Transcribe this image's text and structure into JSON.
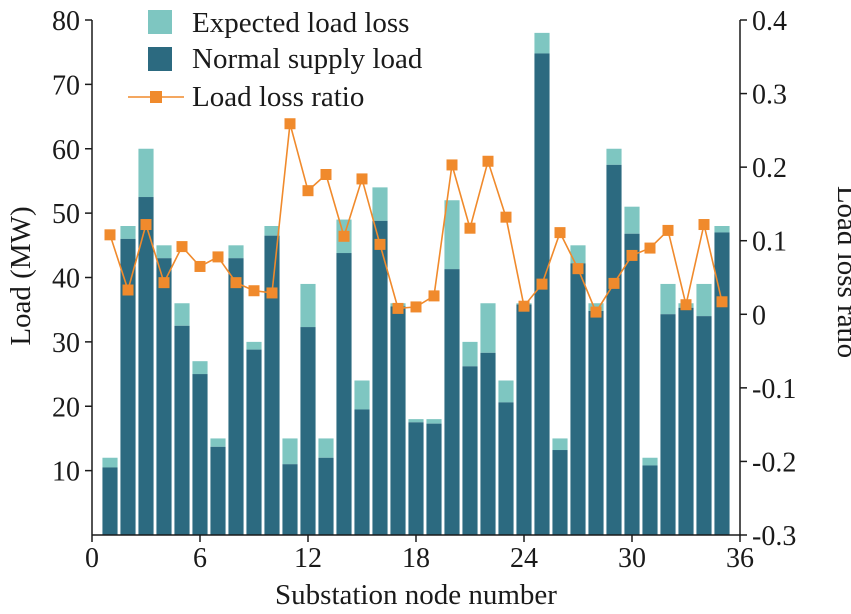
{
  "chart_data": {
    "type": "bar",
    "subtype": "stacked bar with secondary-axis line",
    "title": "",
    "xlabel": "Substation node number",
    "ylabel": "Load (MW)",
    "ylabel_right": "Load loss ratio",
    "x": [
      1,
      2,
      3,
      4,
      5,
      6,
      7,
      8,
      9,
      10,
      11,
      12,
      13,
      14,
      15,
      16,
      17,
      18,
      19,
      20,
      21,
      22,
      23,
      24,
      25,
      26,
      27,
      28,
      29,
      30,
      31,
      32,
      33,
      34,
      35
    ],
    "xlim": [
      0,
      36
    ],
    "xticks": [
      0,
      6,
      12,
      18,
      24,
      30,
      36
    ],
    "ylim": [
      0,
      80
    ],
    "yticks": [
      10,
      20,
      30,
      40,
      50,
      60,
      70,
      80
    ],
    "ylim_right": [
      -0.3,
      0.4
    ],
    "yticks_right": [
      -0.3,
      -0.2,
      -0.1,
      0,
      0.1,
      0.2,
      0.3,
      0.4
    ],
    "yticklabels_right": [
      "-0.3",
      "-0.2",
      "-0.1",
      "0",
      "0.1",
      "0.2",
      "0.3",
      "0.4"
    ],
    "grid": false,
    "legend_position": "top-left",
    "series": [
      {
        "name": "Normal supply load",
        "kind": "bar",
        "axis": "left",
        "color": "#2c6a80",
        "values": [
          10.5,
          46,
          52.5,
          43,
          32.5,
          25,
          13.7,
          43,
          28.8,
          46.5,
          11,
          32.3,
          12,
          43.8,
          19.5,
          48.8,
          35.5,
          17.5,
          17.3,
          41.3,
          26.2,
          28.3,
          20.6,
          35.8,
          74.8,
          13.2,
          42.2,
          34.8,
          57.5,
          46.8,
          10.8,
          34.3,
          35.3,
          34,
          47
        ]
      },
      {
        "name": "Expected load loss",
        "kind": "bar",
        "axis": "left",
        "color": "#7ec6c1",
        "stacked_on": "Normal supply load",
        "totals": [
          12,
          48,
          60,
          45,
          36,
          27,
          15,
          45,
          30,
          48,
          15,
          39,
          15,
          49,
          24,
          54,
          36,
          18,
          18,
          52,
          30,
          36,
          24,
          36,
          78,
          15,
          45,
          36,
          60,
          51,
          12,
          39,
          36,
          39,
          48
        ]
      },
      {
        "name": "Load loss ratio",
        "kind": "line",
        "axis": "right",
        "color": "#f08a2c",
        "values": [
          0.108,
          0.033,
          0.122,
          0.043,
          0.092,
          0.065,
          0.078,
          0.043,
          0.032,
          0.029,
          0.259,
          0.168,
          0.19,
          0.106,
          0.184,
          0.095,
          0.008,
          0.01,
          0.025,
          0.203,
          0.117,
          0.208,
          0.132,
          0.011,
          0.041,
          0.111,
          0.062,
          0.003,
          0.042,
          0.08,
          0.09,
          0.114,
          0.013,
          0.122,
          0.017
        ]
      }
    ],
    "legend": [
      {
        "label": "Expected load loss",
        "marker": "square",
        "color": "#7ec6c1"
      },
      {
        "label": "Normal supply load",
        "marker": "square",
        "color": "#2c6a80"
      },
      {
        "label": "Load loss ratio",
        "marker": "line-square",
        "color": "#f08a2c"
      }
    ]
  }
}
